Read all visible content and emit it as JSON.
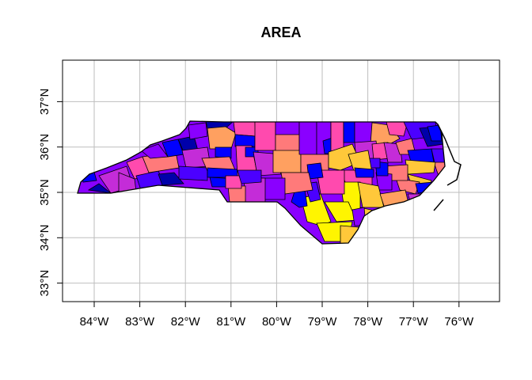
{
  "title": "AREA",
  "x_ticks": [
    "84°W",
    "83°W",
    "82°W",
    "81°W",
    "80°W",
    "79°W",
    "78°W",
    "77°W",
    "76°W"
  ],
  "x_tick_values": [
    -84,
    -83,
    -82,
    -81,
    -80,
    -79,
    -78,
    -77,
    -76
  ],
  "y_ticks": [
    "33°N",
    "34°N",
    "35°N",
    "36°N",
    "37°N"
  ],
  "y_tick_values": [
    33,
    34,
    35,
    36,
    37
  ],
  "xlim": [
    -84.6,
    -75.2
  ],
  "ylim": [
    32.6,
    37.9
  ],
  "grid": true,
  "palette": [
    "#0000AA",
    "#0000FF",
    "#4B00FF",
    "#8A00FF",
    "#C42CD8",
    "#FF4AAE",
    "#FF7A7A",
    "#FFA060",
    "#FFC83A",
    "#FFF500"
  ],
  "colors": {
    "border": "#000000",
    "grid": "#BEBEBE"
  }
}
